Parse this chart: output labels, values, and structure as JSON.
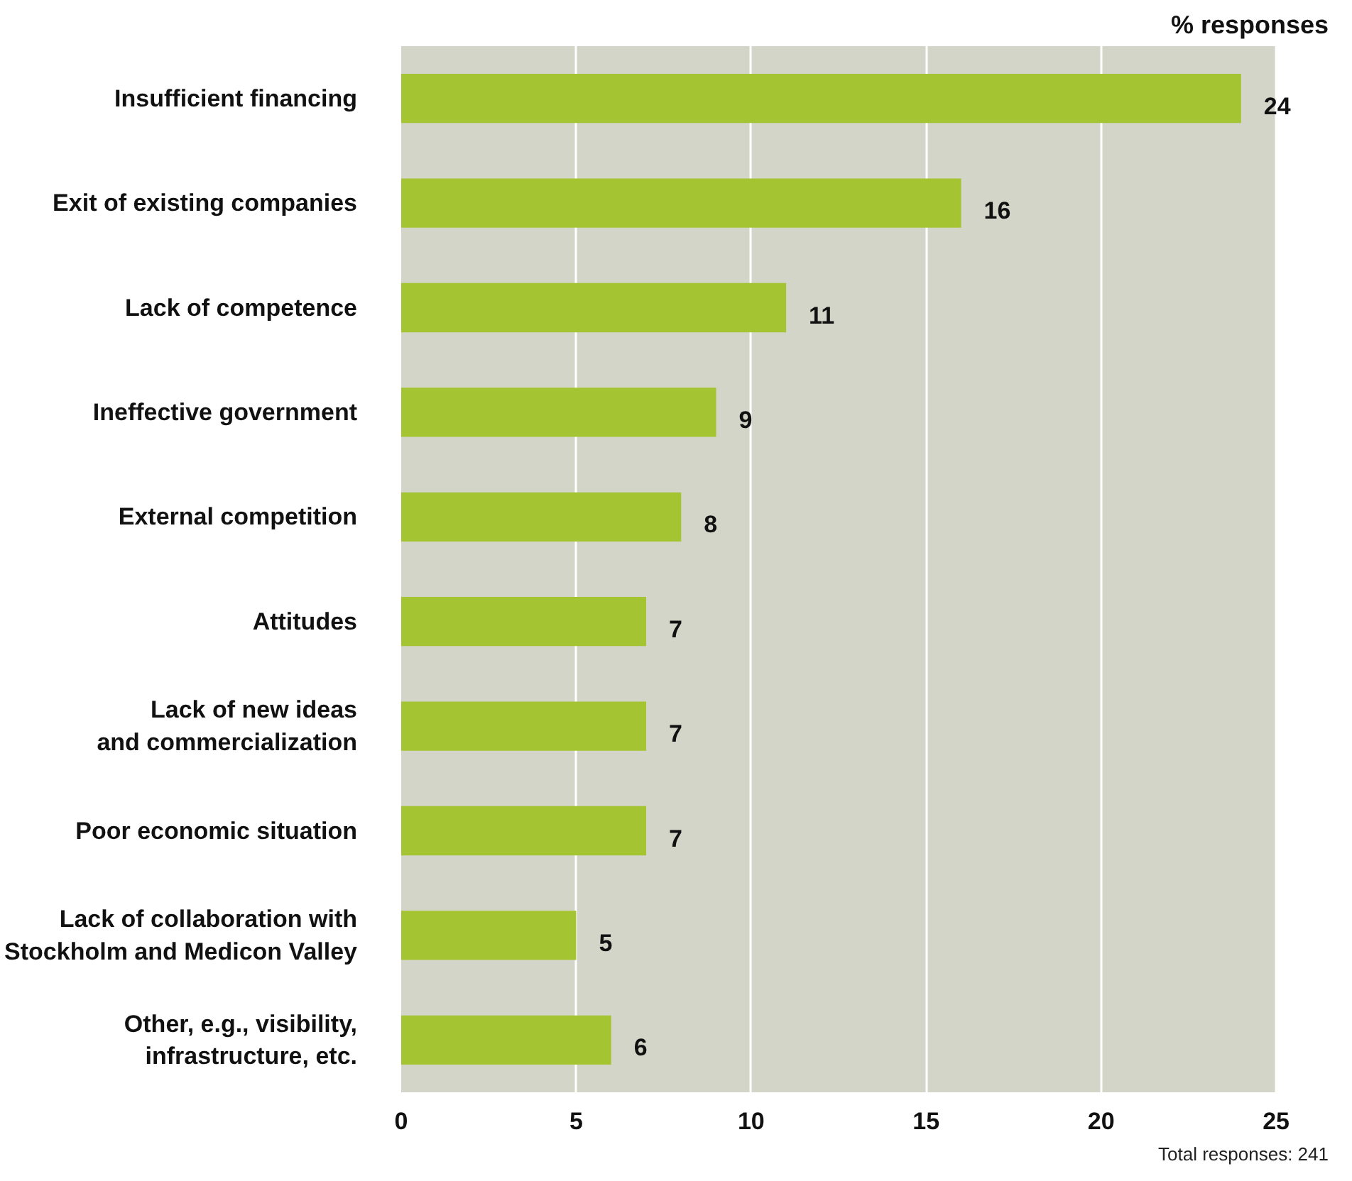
{
  "chart_data": {
    "type": "bar",
    "orientation": "horizontal",
    "xlabel": "% responses",
    "categories": [
      "Insufficient financing",
      "Exit of existing companies",
      "Lack of competence",
      "Ineffective government",
      "External competition",
      "Attitudes",
      "Lack of new ideas and commercialization",
      "Poor economic situation",
      "Lack of collaboration with Stockholm and Medicon Valley",
      "Other, e.g., visibility, infrastructure, etc."
    ],
    "values": [
      24,
      16,
      11,
      9,
      8,
      7,
      7,
      7,
      5,
      6
    ],
    "color": "#a4c431",
    "data_labels": true,
    "xlim": [
      0,
      25
    ],
    "xticks": [
      0,
      5,
      10,
      15,
      20,
      25
    ],
    "grid": "x",
    "annotations": [
      "Total responses: 241"
    ]
  }
}
